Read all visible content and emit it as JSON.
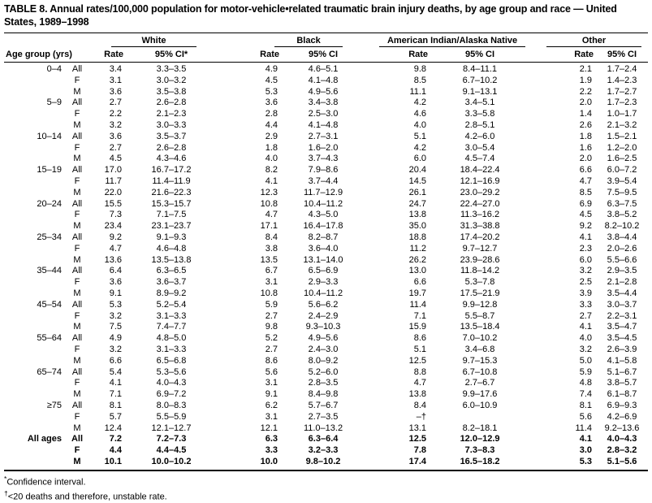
{
  "title": "TABLE 8. Annual rates/100,000 population for motor-vehicle•related traumatic brain injury deaths, by age group and race — United States, 1989–1998",
  "table": {
    "age_group_header": "Age group (yrs)",
    "groups": [
      {
        "label": "White",
        "rate": "Rate",
        "ci": "95% CI*"
      },
      {
        "label": "Black",
        "rate": "Rate",
        "ci": "95% CI"
      },
      {
        "label": "American Indian/Alaska Native",
        "rate": "Rate",
        "ci": "95% CI"
      },
      {
        "label": "Other",
        "rate": "Rate",
        "ci": "95% CI"
      }
    ],
    "column_order": [
      "white_rate",
      "white_ci",
      "black_rate",
      "black_ci",
      "aian_rate",
      "aian_ci",
      "other_rate",
      "other_ci"
    ],
    "rows": [
      {
        "age": "0–4",
        "sex": "All",
        "bold": false,
        "v": [
          "3.4",
          "3.3–3.5",
          "4.9",
          "4.6–5.1",
          "9.8",
          "8.4–11.1",
          "2.1",
          "1.7–2.4"
        ]
      },
      {
        "age": "",
        "sex": "F",
        "bold": false,
        "v": [
          "3.1",
          "3.0–3.2",
          "4.5",
          "4.1–4.8",
          "8.5",
          "6.7–10.2",
          "1.9",
          "1.4–2.3"
        ]
      },
      {
        "age": "",
        "sex": "M",
        "bold": false,
        "v": [
          "3.6",
          "3.5–3.8",
          "5.3",
          "4.9–5.6",
          "11.1",
          "9.1–13.1",
          "2.2",
          "1.7–2.7"
        ]
      },
      {
        "age": "5–9",
        "sex": "All",
        "bold": false,
        "v": [
          "2.7",
          "2.6–2.8",
          "3.6",
          "3.4–3.8",
          "4.2",
          "3.4–5.1",
          "2.0",
          "1.7–2.3"
        ]
      },
      {
        "age": "",
        "sex": "F",
        "bold": false,
        "v": [
          "2.2",
          "2.1–2.3",
          "2.8",
          "2.5–3.0",
          "4.6",
          "3.3–5.8",
          "1.4",
          "1.0–1.7"
        ]
      },
      {
        "age": "",
        "sex": "M",
        "bold": false,
        "v": [
          "3.2",
          "3.0–3.3",
          "4.4",
          "4.1–4.8",
          "4.0",
          "2.8–5.1",
          "2.6",
          "2.1–3.2"
        ]
      },
      {
        "age": "10–14",
        "sex": "All",
        "bold": false,
        "v": [
          "3.6",
          "3.5–3.7",
          "2.9",
          "2.7–3.1",
          "5.1",
          "4.2–6.0",
          "1.8",
          "1.5–2.1"
        ]
      },
      {
        "age": "",
        "sex": "F",
        "bold": false,
        "v": [
          "2.7",
          "2.6–2.8",
          "1.8",
          "1.6–2.0",
          "4.2",
          "3.0–5.4",
          "1.6",
          "1.2–2.0"
        ]
      },
      {
        "age": "",
        "sex": "M",
        "bold": false,
        "v": [
          "4.5",
          "4.3–4.6",
          "4.0",
          "3.7–4.3",
          "6.0",
          "4.5–7.4",
          "2.0",
          "1.6–2.5"
        ]
      },
      {
        "age": "15–19",
        "sex": "All",
        "bold": false,
        "v": [
          "17.0",
          "16.7–17.2",
          "8.2",
          "7.9–8.6",
          "20.4",
          "18.4–22.4",
          "6.6",
          "6.0–7.2"
        ]
      },
      {
        "age": "",
        "sex": "F",
        "bold": false,
        "v": [
          "11.7",
          "11.4–11.9",
          "4.1",
          "3.7–4.4",
          "14.5",
          "12.1–16.9",
          "4.7",
          "3.9–5.4"
        ]
      },
      {
        "age": "",
        "sex": "M",
        "bold": false,
        "v": [
          "22.0",
          "21.6–22.3",
          "12.3",
          "11.7–12.9",
          "26.1",
          "23.0–29.2",
          "8.5",
          "7.5–9.5"
        ]
      },
      {
        "age": "20–24",
        "sex": "All",
        "bold": false,
        "v": [
          "15.5",
          "15.3–15.7",
          "10.8",
          "10.4–11.2",
          "24.7",
          "22.4–27.0",
          "6.9",
          "6.3–7.5"
        ]
      },
      {
        "age": "",
        "sex": "F",
        "bold": false,
        "v": [
          "7.3",
          "7.1–7.5",
          "4.7",
          "4.3–5.0",
          "13.8",
          "11.3–16.2",
          "4.5",
          "3.8–5.2"
        ]
      },
      {
        "age": "",
        "sex": "M",
        "bold": false,
        "v": [
          "23.4",
          "23.1–23.7",
          "17.1",
          "16.4–17.8",
          "35.0",
          "31.3–38.8",
          "9.2",
          "8.2–10.2"
        ]
      },
      {
        "age": "25–34",
        "sex": "All",
        "bold": false,
        "v": [
          "9.2",
          "9.1–9.3",
          "8.4",
          "8.2–8.7",
          "18.8",
          "17.4–20.2",
          "4.1",
          "3.8–4.4"
        ]
      },
      {
        "age": "",
        "sex": "F",
        "bold": false,
        "v": [
          "4.7",
          "4.6–4.8",
          "3.8",
          "3.6–4.0",
          "11.2",
          "9.7–12.7",
          "2.3",
          "2.0–2.6"
        ]
      },
      {
        "age": "",
        "sex": "M",
        "bold": false,
        "v": [
          "13.6",
          "13.5–13.8",
          "13.5",
          "13.1–14.0",
          "26.2",
          "23.9–28.6",
          "6.0",
          "5.5–6.6"
        ]
      },
      {
        "age": "35–44",
        "sex": "All",
        "bold": false,
        "v": [
          "6.4",
          "6.3–6.5",
          "6.7",
          "6.5–6.9",
          "13.0",
          "11.8–14.2",
          "3.2",
          "2.9–3.5"
        ]
      },
      {
        "age": "",
        "sex": "F",
        "bold": false,
        "v": [
          "3.6",
          "3.6–3.7",
          "3.1",
          "2.9–3.3",
          "6.6",
          "5.3–7.8",
          "2.5",
          "2.1–2.8"
        ]
      },
      {
        "age": "",
        "sex": "M",
        "bold": false,
        "v": [
          "9.1",
          "8.9–9.2",
          "10.8",
          "10.4–11.2",
          "19.7",
          "17.5–21.9",
          "3.9",
          "3.5–4.4"
        ]
      },
      {
        "age": "45–54",
        "sex": "All",
        "bold": false,
        "v": [
          "5.3",
          "5.2–5.4",
          "5.9",
          "5.6–6.2",
          "11.4",
          "9.9–12.8",
          "3.3",
          "3.0–3.7"
        ]
      },
      {
        "age": "",
        "sex": "F",
        "bold": false,
        "v": [
          "3.2",
          "3.1–3.3",
          "2.7",
          "2.4–2.9",
          "7.1",
          "5.5–8.7",
          "2.7",
          "2.2–3.1"
        ]
      },
      {
        "age": "",
        "sex": "M",
        "bold": false,
        "v": [
          "7.5",
          "7.4–7.7",
          "9.8",
          "9.3–10.3",
          "15.9",
          "13.5–18.4",
          "4.1",
          "3.5–4.7"
        ]
      },
      {
        "age": "55–64",
        "sex": "All",
        "bold": false,
        "v": [
          "4.9",
          "4.8–5.0",
          "5.2",
          "4.9–5.6",
          "8.6",
          "7.0–10.2",
          "4.0",
          "3.5–4.5"
        ]
      },
      {
        "age": "",
        "sex": "F",
        "bold": false,
        "v": [
          "3.2",
          "3.1–3.3",
          "2.7",
          "2.4–3.0",
          "5.1",
          "3.4–6.8",
          "3.2",
          "2.6–3.9"
        ]
      },
      {
        "age": "",
        "sex": "M",
        "bold": false,
        "v": [
          "6.6",
          "6.5–6.8",
          "8.6",
          "8.0–9.2",
          "12.5",
          "9.7–15.3",
          "5.0",
          "4.1–5.8"
        ]
      },
      {
        "age": "65–74",
        "sex": "All",
        "bold": false,
        "v": [
          "5.4",
          "5.3–5.6",
          "5.6",
          "5.2–6.0",
          "8.8",
          "6.7–10.8",
          "5.9",
          "5.1–6.7"
        ]
      },
      {
        "age": "",
        "sex": "F",
        "bold": false,
        "v": [
          "4.1",
          "4.0–4.3",
          "3.1",
          "2.8–3.5",
          "4.7",
          "2.7–6.7",
          "4.8",
          "3.8–5.7"
        ]
      },
      {
        "age": "",
        "sex": "M",
        "bold": false,
        "v": [
          "7.1",
          "6.9–7.2",
          "9.1",
          "8.4–9.8",
          "13.8",
          "9.9–17.6",
          "7.4",
          "6.1–8.7"
        ]
      },
      {
        "age": "≥75",
        "sex": "All",
        "bold": false,
        "v": [
          "8.1",
          "8.0–8.3",
          "6.2",
          "5.7–6.7",
          "8.4",
          "6.0–10.9",
          "8.1",
          "6.9–9.3"
        ]
      },
      {
        "age": "",
        "sex": "F",
        "bold": false,
        "v": [
          "5.7",
          "5.5–5.9",
          "3.1",
          "2.7–3.5",
          "–†",
          "",
          "5.6",
          "4.2–6.9"
        ]
      },
      {
        "age": "",
        "sex": "M",
        "bold": false,
        "v": [
          "12.4",
          "12.1–12.7",
          "12.1",
          "11.0–13.2",
          "13.1",
          "8.2–18.1",
          "11.4",
          "9.2–13.6"
        ]
      },
      {
        "age": "All ages",
        "sex": "All",
        "bold": true,
        "v": [
          "7.2",
          "7.2–7.3",
          "6.3",
          "6.3–6.4",
          "12.5",
          "12.0–12.9",
          "4.1",
          "4.0–4.3"
        ]
      },
      {
        "age": "",
        "sex": "F",
        "bold": true,
        "v": [
          "4.4",
          "4.4–4.5",
          "3.3",
          "3.2–3.3",
          "7.8",
          "7.3–8.3",
          "3.0",
          "2.8–3.2"
        ]
      },
      {
        "age": "",
        "sex": "M",
        "bold": true,
        "v": [
          "10.1",
          "10.0–10.2",
          "10.0",
          "9.8–10.2",
          "17.4",
          "16.5–18.2",
          "5.3",
          "5.1–5.6"
        ]
      }
    ]
  },
  "footnotes": [
    {
      "marker": "*",
      "text": "Confidence interval."
    },
    {
      "marker": "†",
      "text": "<20 deaths and therefore, unstable rate."
    }
  ]
}
